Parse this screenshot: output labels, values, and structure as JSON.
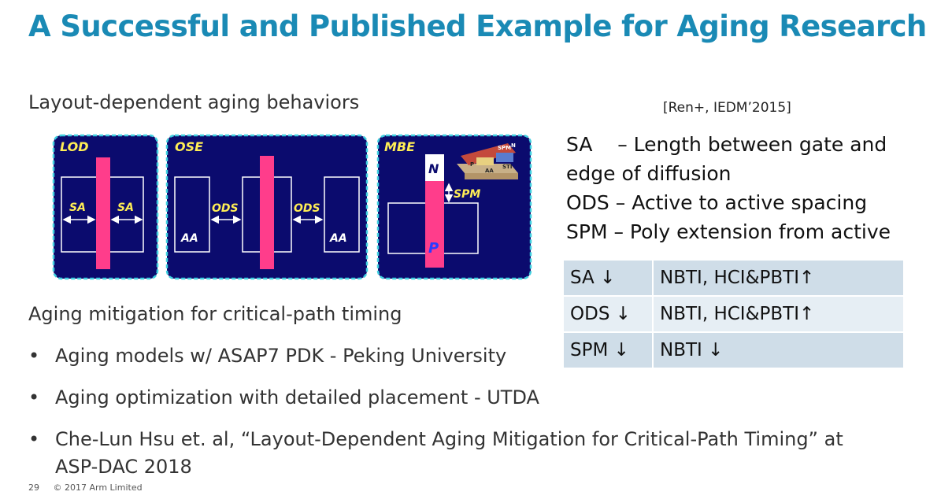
{
  "title": "A Successful and Published Example for Aging Research",
  "subtitle": "Layout-dependent aging behaviors",
  "reference": "[Ren+, IEDM’2015]",
  "definitions": [
    "SA    – Length between gate and",
    "edge of diffusion",
    "ODS – Active to active spacing",
    "SPM – Poly extension from active"
  ],
  "diagram": {
    "lod": {
      "label": "LOD",
      "sa_left": "SA",
      "sa_right": "SA"
    },
    "ose": {
      "label": "OSE",
      "ods_left": "ODS",
      "ods_right": "ODS",
      "aa_left": "AA",
      "aa_right": "AA"
    },
    "mbe": {
      "label": "MBE",
      "n": "N",
      "p": "P",
      "spm": "SPM",
      "inset_spm": "SPM",
      "inset_n": "N",
      "inset_p": "P",
      "inset_aa": "AA",
      "inset_sti": "STI"
    }
  },
  "effects_table": [
    {
      "param": "SA ↓",
      "effect": "NBTI, HCI&PBTI↑"
    },
    {
      "param": "ODS ↓",
      "effect": "NBTI, HCI&PBTI↑"
    },
    {
      "param": "SPM ↓",
      "effect": "NBTI ↓"
    }
  ],
  "mitigation_heading": "Aging mitigation for critical-path timing",
  "bullets": [
    "Aging models w/ ASAP7 PDK - Peking University",
    "Aging optimization with detailed placement - UTDA",
    "Che-Lun Hsu et. al, “Layout-Dependent Aging Mitigation for Critical-Path Timing” at",
    "ASP-DAC 2018"
  ],
  "footer": {
    "page": "29",
    "copyright": "© 2017 Arm Limited"
  },
  "colors": {
    "title": "#1a8ab5",
    "panel": "#0b0b6e",
    "poly": "#ff3d8b",
    "panel_border": "#3fd0e0",
    "label": "#ffee55"
  }
}
